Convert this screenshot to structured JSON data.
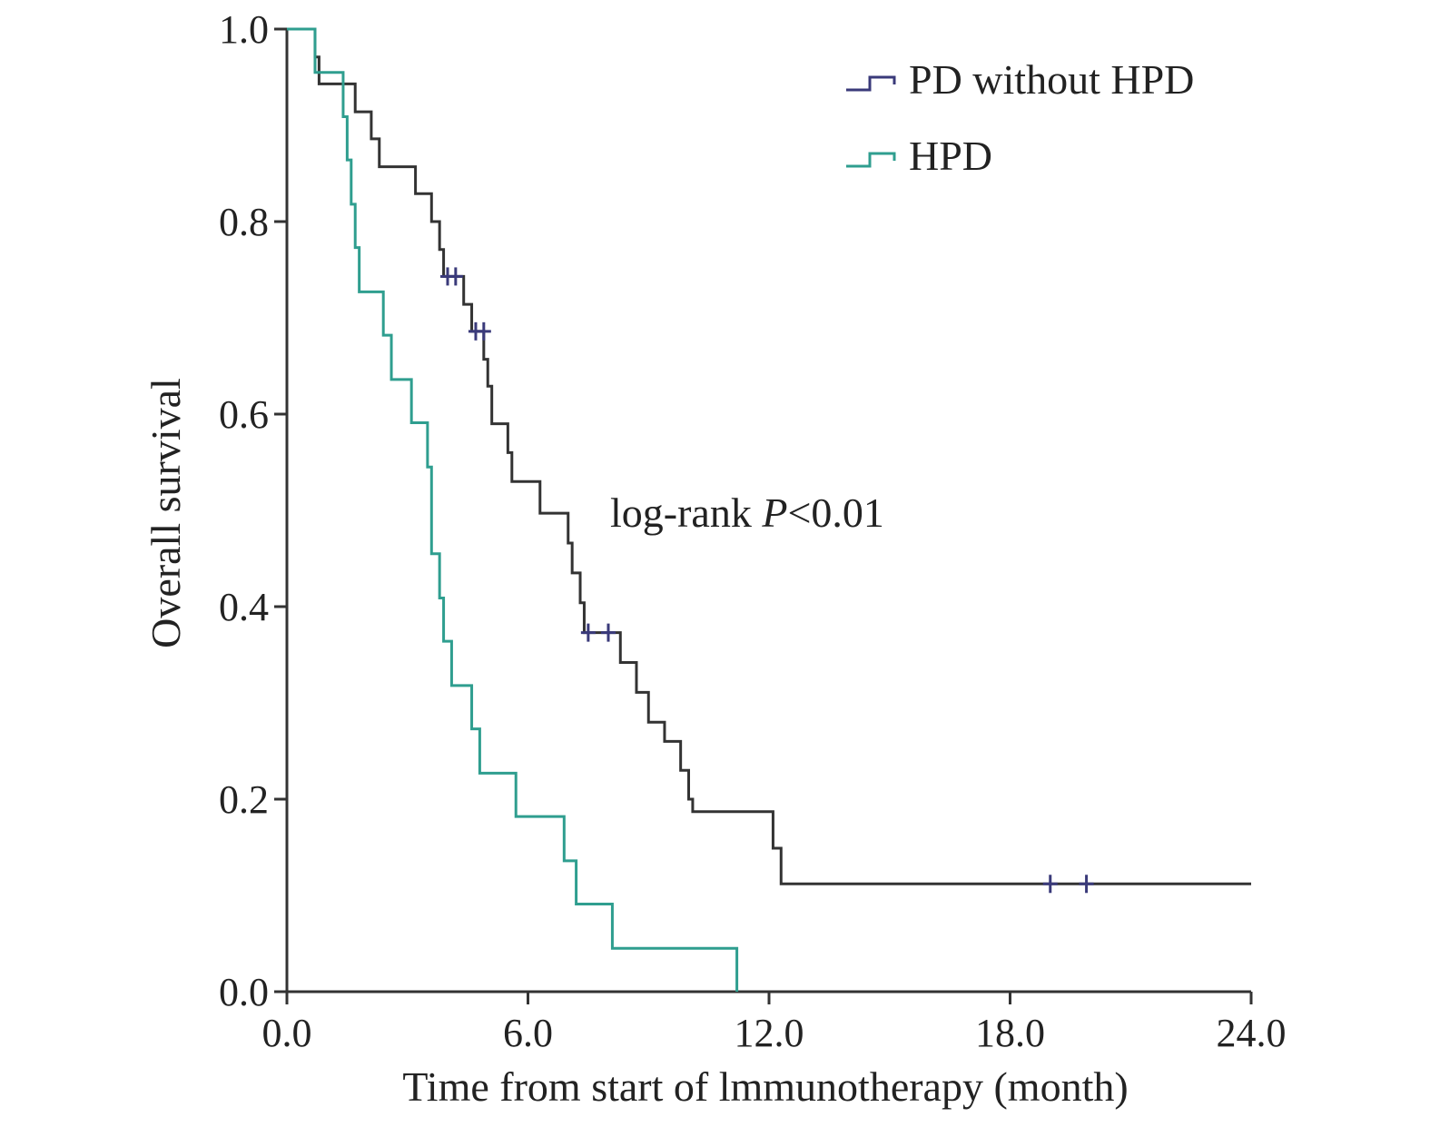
{
  "chart_data": {
    "type": "line",
    "subtype": "kaplan-meier step",
    "xlabel": "Time from start of lmmunotherapy (month)",
    "ylabel": "Overall survival",
    "xlim": [
      0,
      24
    ],
    "ylim": [
      0,
      1
    ],
    "x_ticks": [
      "0.0",
      "6.0",
      "12.0",
      "18.0",
      "24.0"
    ],
    "y_ticks": [
      "0.0",
      "0.2",
      "0.4",
      "0.6",
      "0.8",
      "1.0"
    ],
    "grid": false,
    "legend_position": "top-right",
    "annotation": {
      "prefix": "log-rank ",
      "italic": "P",
      "suffix": "<0.01"
    },
    "series": [
      {
        "name": "PD without HPD",
        "legend_color": "#3a3a7a",
        "color": "#333333",
        "steps": [
          [
            0,
            1.0
          ],
          [
            0.7,
            0.971
          ],
          [
            0.8,
            0.943
          ],
          [
            1.7,
            0.914
          ],
          [
            2.1,
            0.886
          ],
          [
            2.3,
            0.857
          ],
          [
            3.2,
            0.829
          ],
          [
            3.6,
            0.8
          ],
          [
            3.8,
            0.771
          ],
          [
            3.9,
            0.743
          ],
          [
            4.4,
            0.714
          ],
          [
            4.6,
            0.686
          ],
          [
            4.9,
            0.657
          ],
          [
            5.0,
            0.629
          ],
          [
            5.1,
            0.59
          ],
          [
            5.5,
            0.56
          ],
          [
            5.6,
            0.53
          ],
          [
            6.3,
            0.497
          ],
          [
            7.0,
            0.466
          ],
          [
            7.1,
            0.435
          ],
          [
            7.3,
            0.404
          ],
          [
            7.4,
            0.373
          ],
          [
            8.3,
            0.342
          ],
          [
            8.7,
            0.311
          ],
          [
            9.0,
            0.28
          ],
          [
            9.4,
            0.26
          ],
          [
            9.8,
            0.23
          ],
          [
            10.0,
            0.2
          ],
          [
            10.1,
            0.187
          ],
          [
            12.1,
            0.149
          ],
          [
            12.3,
            0.112
          ]
        ],
        "end_x": 24,
        "censored": [
          [
            4.0,
            0.743
          ],
          [
            4.2,
            0.743
          ],
          [
            4.7,
            0.686
          ],
          [
            4.9,
            0.686
          ],
          [
            7.5,
            0.373
          ],
          [
            8.0,
            0.373
          ],
          [
            19.0,
            0.112
          ],
          [
            19.9,
            0.112
          ]
        ]
      },
      {
        "name": "HPD",
        "legend_color": "#2f9e8f",
        "color": "#2f9e8f",
        "steps": [
          [
            0,
            1.0
          ],
          [
            0.7,
            0.955
          ],
          [
            1.4,
            0.909
          ],
          [
            1.5,
            0.864
          ],
          [
            1.6,
            0.818
          ],
          [
            1.7,
            0.773
          ],
          [
            1.8,
            0.727
          ],
          [
            2.4,
            0.682
          ],
          [
            2.6,
            0.636
          ],
          [
            3.1,
            0.591
          ],
          [
            3.5,
            0.545
          ],
          [
            3.6,
            0.455
          ],
          [
            3.8,
            0.409
          ],
          [
            3.9,
            0.364
          ],
          [
            4.1,
            0.318
          ],
          [
            4.6,
            0.273
          ],
          [
            4.8,
            0.227
          ],
          [
            5.7,
            0.182
          ],
          [
            6.9,
            0.136
          ],
          [
            7.2,
            0.091
          ],
          [
            8.1,
            0.045
          ],
          [
            11.2,
            0.0
          ]
        ],
        "end_x": 11.2,
        "censored": []
      }
    ]
  }
}
